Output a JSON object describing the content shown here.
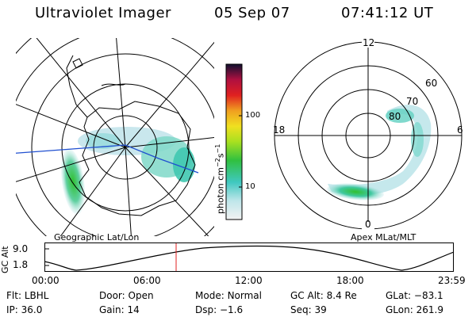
{
  "header": {
    "title": "Ultraviolet Imager",
    "date": "05 Sep 07",
    "time": "07:41:12 UT"
  },
  "left_panel": {
    "label": "Geographic Lat/Lon"
  },
  "right_panel": {
    "label": "Apex MLat/MLT",
    "mlt_labels": {
      "top": "12",
      "left": "18",
      "right": "6",
      "bottom": "0"
    },
    "lat_labels": [
      "60",
      "70",
      "80"
    ]
  },
  "colorbar": {
    "unit": "photon cm^-2 s^-1",
    "unit_main": "photon cm",
    "unit_sup1": "−2",
    "unit_mid": "s",
    "unit_sup2": "−1",
    "ticks": [
      "100",
      "10"
    ]
  },
  "altitude_plot": {
    "ylabel": "GC Alt",
    "yticks": [
      "9.0",
      "1.8"
    ],
    "xticks": [
      "00:00",
      "06:00",
      "12:00",
      "18:00",
      "23:59"
    ],
    "cursor_time": "07:41"
  },
  "footer": {
    "row1": [
      {
        "k": "Flt:",
        "v": "LBHL"
      },
      {
        "k": "Door:",
        "v": "Open"
      },
      {
        "k": "Mode:",
        "v": "Normal"
      },
      {
        "k": "GC Alt:",
        "v": "8.4 Re"
      },
      {
        "k": "GLat:",
        "v": "−83.1"
      }
    ],
    "row2": [
      {
        "k": "IP:",
        "v": "36.0"
      },
      {
        "k": "Gain:",
        "v": "14"
      },
      {
        "k": "Dsp:",
        "v": "−1.6"
      },
      {
        "k": "Seq:",
        "v": "39"
      },
      {
        "k": "GLon:",
        "v": "261.9"
      }
    ]
  },
  "colors": {
    "track": "#1f4fd0",
    "cursor": "#e02020",
    "aurora_bright": "#30c030",
    "aurora_dim": "#a8dce0"
  }
}
